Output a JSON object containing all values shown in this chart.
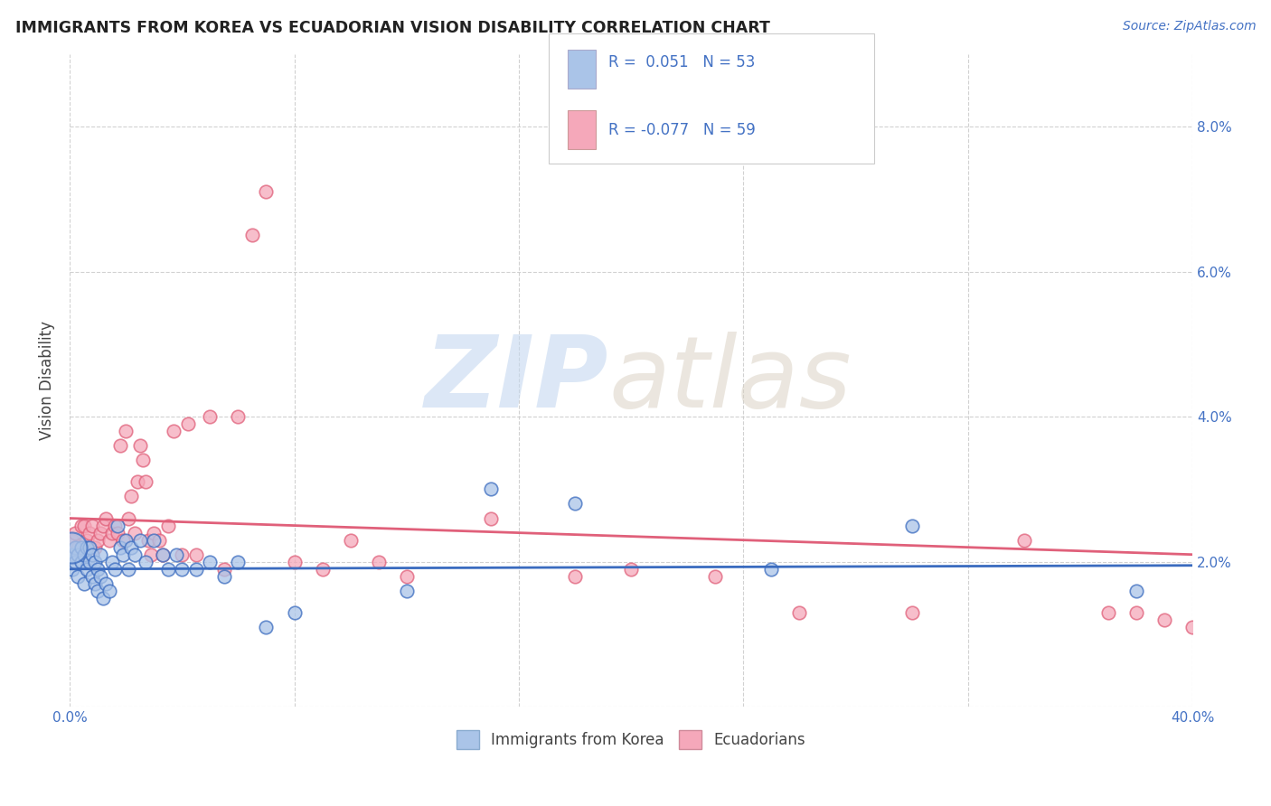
{
  "title": "IMMIGRANTS FROM KOREA VS ECUADORIAN VISION DISABILITY CORRELATION CHART",
  "source": "Source: ZipAtlas.com",
  "ylabel": "Vision Disability",
  "xlim": [
    0.0,
    0.4
  ],
  "ylim": [
    0.0,
    0.09
  ],
  "korea_color": "#aac4e8",
  "ecuador_color": "#f5a8ba",
  "korea_line_color": "#3a6bbf",
  "ecuador_line_color": "#e0607a",
  "legend_R1": "0.051",
  "legend_N1": "53",
  "legend_R2": "-0.077",
  "legend_N2": "59",
  "korea_scatter_x": [
    0.001,
    0.001,
    0.002,
    0.002,
    0.003,
    0.003,
    0.004,
    0.004,
    0.005,
    0.005,
    0.006,
    0.006,
    0.007,
    0.007,
    0.008,
    0.008,
    0.009,
    0.009,
    0.01,
    0.01,
    0.011,
    0.011,
    0.012,
    0.013,
    0.014,
    0.015,
    0.016,
    0.017,
    0.018,
    0.019,
    0.02,
    0.021,
    0.022,
    0.023,
    0.025,
    0.027,
    0.03,
    0.033,
    0.035,
    0.038,
    0.04,
    0.045,
    0.05,
    0.055,
    0.06,
    0.07,
    0.08,
    0.12,
    0.15,
    0.18,
    0.25,
    0.3,
    0.38
  ],
  "korea_scatter_y": [
    0.019,
    0.021,
    0.02,
    0.022,
    0.018,
    0.021,
    0.02,
    0.022,
    0.017,
    0.021,
    0.019,
    0.022,
    0.02,
    0.022,
    0.018,
    0.021,
    0.017,
    0.02,
    0.016,
    0.019,
    0.018,
    0.021,
    0.015,
    0.017,
    0.016,
    0.02,
    0.019,
    0.025,
    0.022,
    0.021,
    0.023,
    0.019,
    0.022,
    0.021,
    0.023,
    0.02,
    0.023,
    0.021,
    0.019,
    0.021,
    0.019,
    0.019,
    0.02,
    0.018,
    0.02,
    0.011,
    0.013,
    0.016,
    0.03,
    0.028,
    0.019,
    0.025,
    0.016
  ],
  "ecuador_scatter_x": [
    0.001,
    0.002,
    0.002,
    0.003,
    0.004,
    0.005,
    0.006,
    0.007,
    0.008,
    0.009,
    0.01,
    0.011,
    0.012,
    0.013,
    0.014,
    0.015,
    0.016,
    0.017,
    0.018,
    0.019,
    0.02,
    0.021,
    0.022,
    0.023,
    0.024,
    0.025,
    0.026,
    0.027,
    0.028,
    0.029,
    0.03,
    0.032,
    0.033,
    0.035,
    0.037,
    0.04,
    0.042,
    0.045,
    0.05,
    0.055,
    0.06,
    0.065,
    0.07,
    0.08,
    0.09,
    0.1,
    0.11,
    0.12,
    0.15,
    0.18,
    0.2,
    0.23,
    0.26,
    0.3,
    0.34,
    0.37,
    0.4,
    0.38,
    0.39
  ],
  "ecuador_scatter_y": [
    0.023,
    0.022,
    0.024,
    0.022,
    0.025,
    0.025,
    0.023,
    0.024,
    0.025,
    0.022,
    0.023,
    0.024,
    0.025,
    0.026,
    0.023,
    0.024,
    0.025,
    0.024,
    0.036,
    0.023,
    0.038,
    0.026,
    0.029,
    0.024,
    0.031,
    0.036,
    0.034,
    0.031,
    0.023,
    0.021,
    0.024,
    0.023,
    0.021,
    0.025,
    0.038,
    0.021,
    0.039,
    0.021,
    0.04,
    0.019,
    0.04,
    0.065,
    0.071,
    0.02,
    0.019,
    0.023,
    0.02,
    0.018,
    0.026,
    0.018,
    0.019,
    0.018,
    0.013,
    0.013,
    0.023,
    0.013,
    0.011,
    0.013,
    0.012
  ],
  "korea_line_x0": 0.0,
  "korea_line_y0": 0.019,
  "korea_line_x1": 0.4,
  "korea_line_y1": 0.0195,
  "ecuador_line_x0": 0.0,
  "ecuador_line_y0": 0.026,
  "ecuador_line_x1": 0.4,
  "ecuador_line_y1": 0.021
}
